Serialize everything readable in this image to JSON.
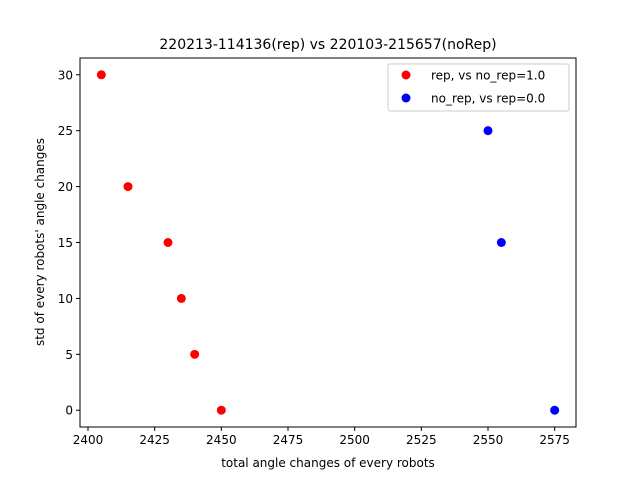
{
  "chart_data": {
    "type": "scatter",
    "title": "220213-114136(rep) vs 220103-215657(noRep)",
    "xlabel": "total angle changes of every robots",
    "ylabel": "std of every robots' angle changes",
    "xlim": [
      2397,
      2583
    ],
    "ylim": [
      -1.5,
      31.5
    ],
    "xticks": [
      2400,
      2425,
      2450,
      2475,
      2500,
      2525,
      2550,
      2575
    ],
    "yticks": [
      0,
      5,
      10,
      15,
      20,
      25,
      30
    ],
    "grid": false,
    "legend_position": "top-right",
    "series": [
      {
        "name": "rep, vs no_rep=1.0",
        "color": "#ff0000",
        "points": [
          {
            "x": 2405,
            "y": 30
          },
          {
            "x": 2415,
            "y": 20
          },
          {
            "x": 2430,
            "y": 15
          },
          {
            "x": 2435,
            "y": 10
          },
          {
            "x": 2440,
            "y": 5
          },
          {
            "x": 2450,
            "y": 0
          }
        ]
      },
      {
        "name": "no_rep, vs rep=0.0",
        "color": "#0000ff",
        "points": [
          {
            "x": 2550,
            "y": 25
          },
          {
            "x": 2555,
            "y": 15
          },
          {
            "x": 2575,
            "y": 0
          }
        ]
      }
    ]
  }
}
